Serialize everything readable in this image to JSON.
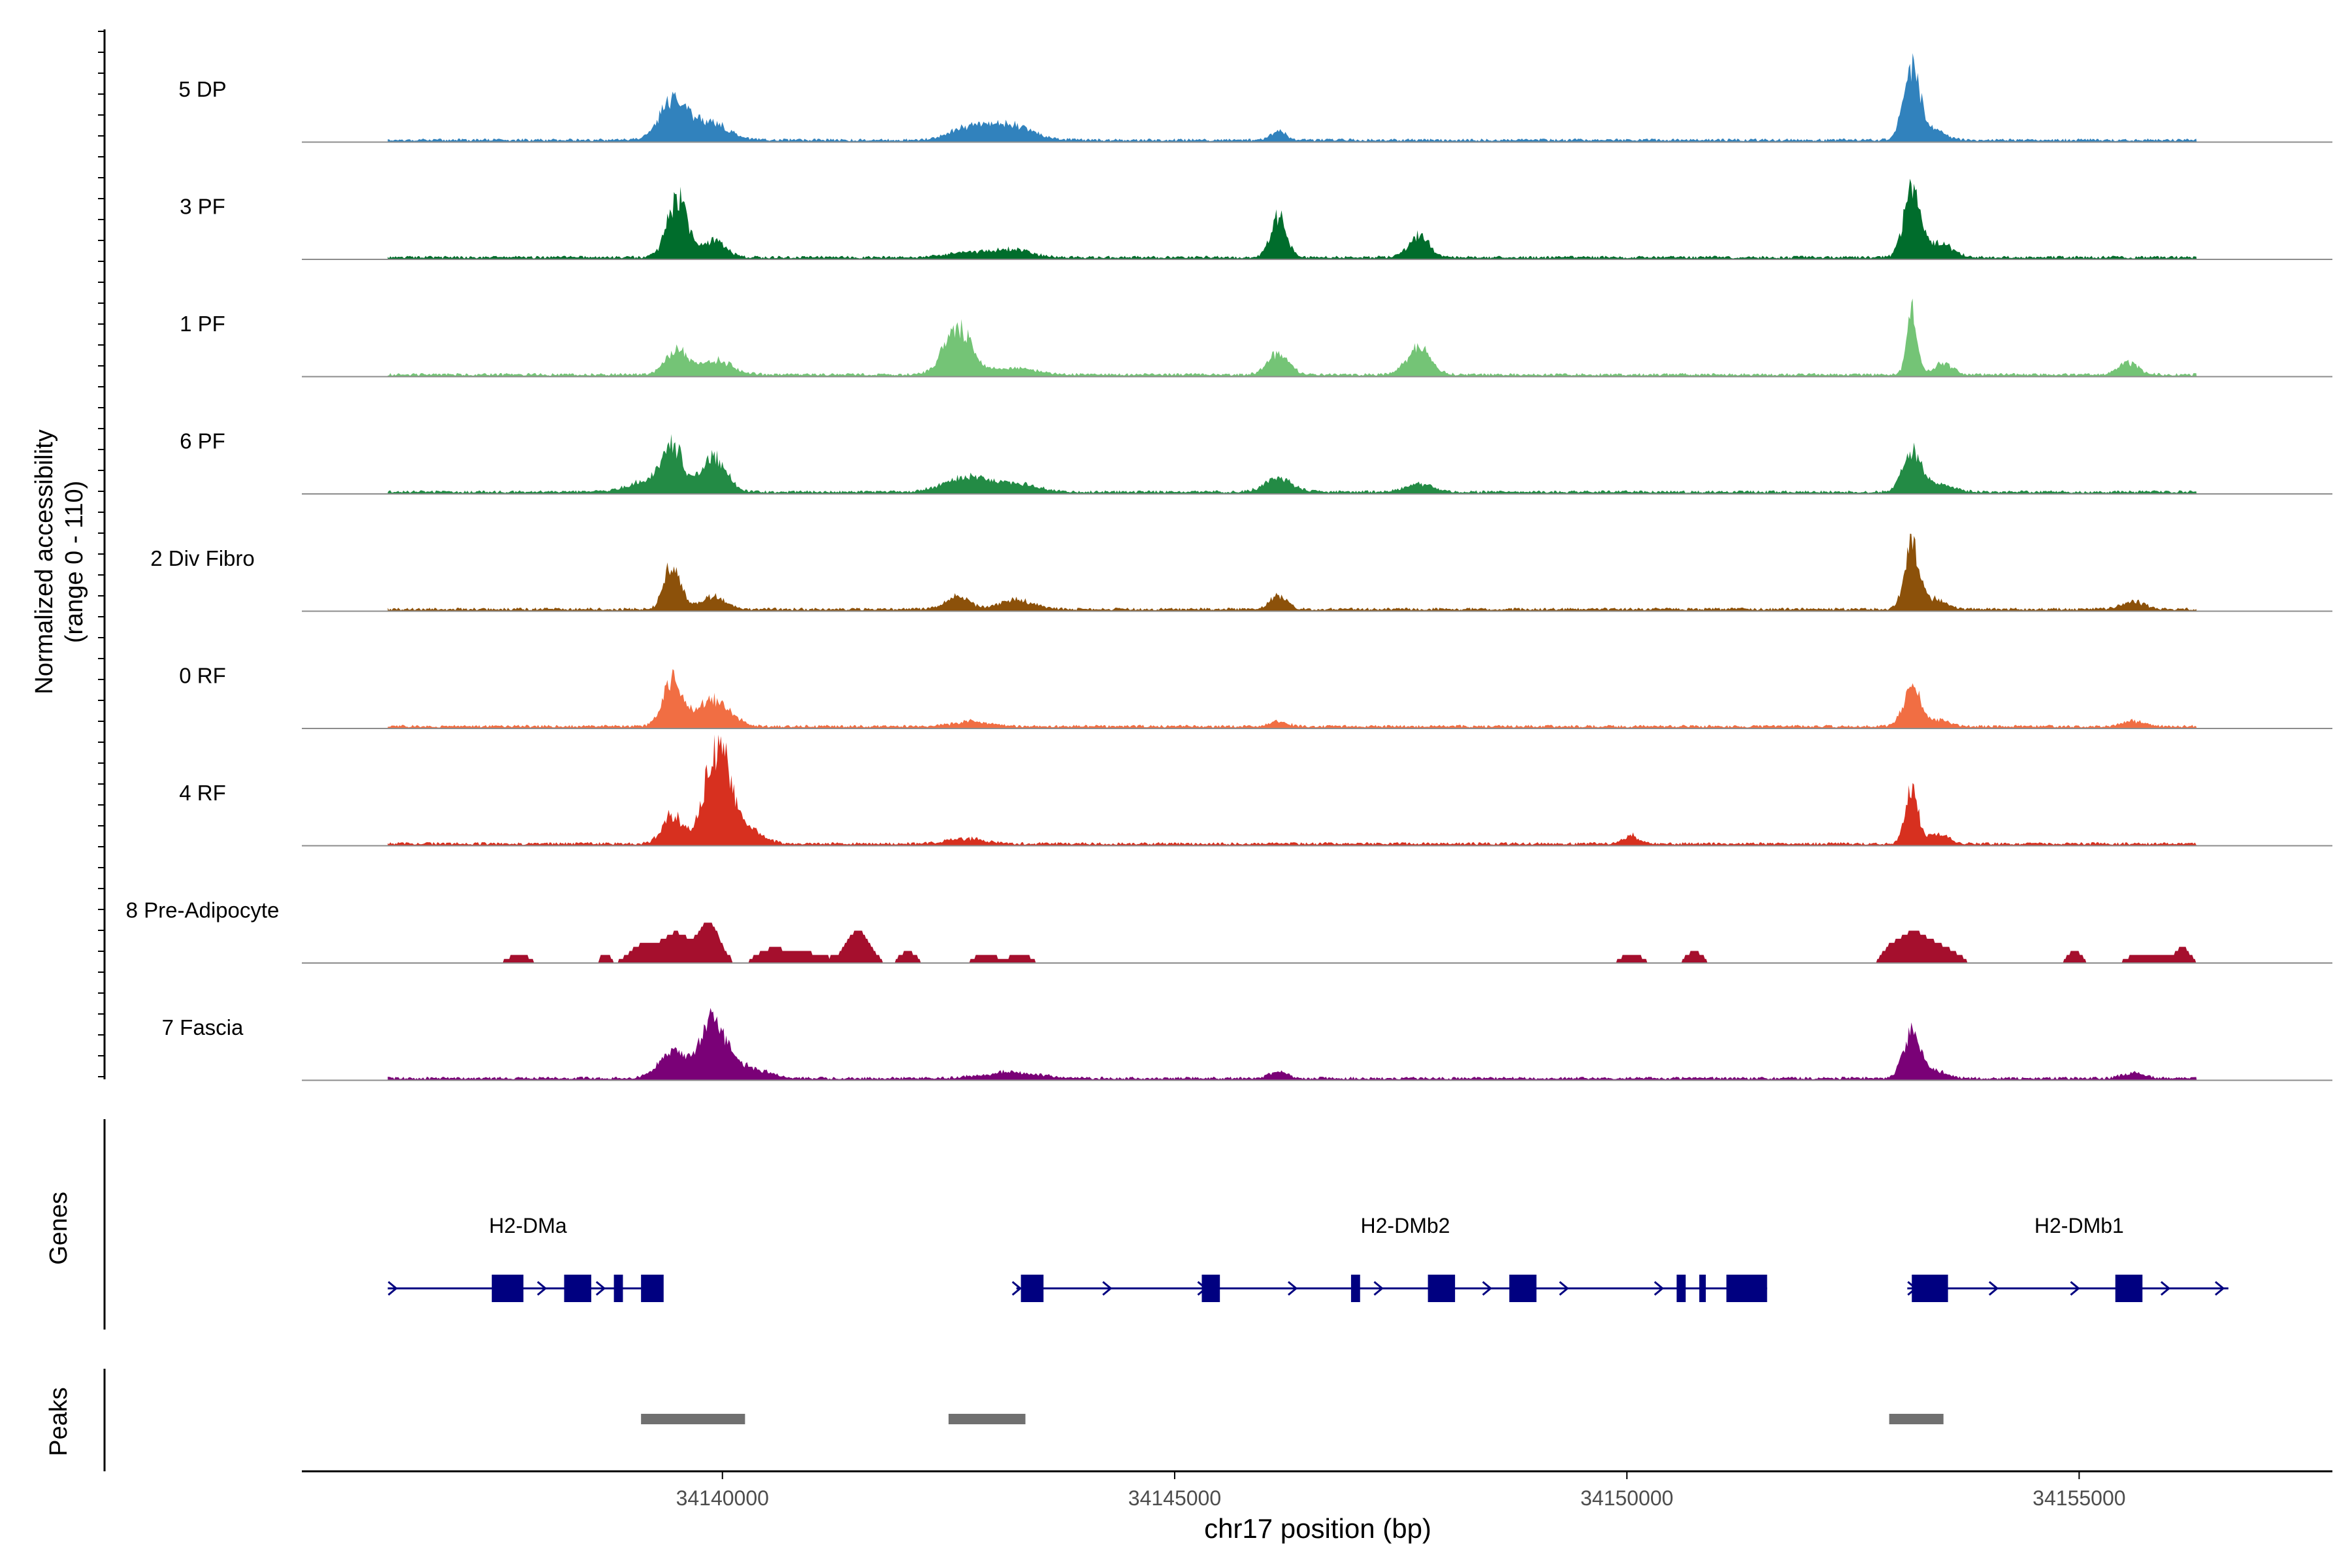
{
  "chart_data": {
    "type": "area",
    "title": "",
    "xlabel": "chr17 position (bp)",
    "ylabel_line1": "Normalized accessibility",
    "ylabel_line2": "(range 0 - 110)",
    "yrange": [
      0,
      110
    ],
    "xlim": [
      34135350,
      34157800
    ],
    "xticks": [
      34140000,
      34145000,
      34150000,
      34155000
    ],
    "xtick_labels": [
      "34140000",
      "34145000",
      "34150000",
      "34155000"
    ],
    "track_region": [
      34136300,
      34156300
    ],
    "tracks": [
      {
        "name": "5 DP",
        "color": "#3182bd",
        "baseline": 3,
        "peaks": [
          [
            34139450,
            38,
            150
          ],
          [
            34139850,
            18,
            200
          ],
          [
            34142700,
            10,
            200
          ],
          [
            34143150,
            16,
            250
          ],
          [
            34146150,
            9,
            80
          ],
          [
            34153150,
            72,
            90
          ],
          [
            34153400,
            10,
            120
          ]
        ]
      },
      {
        "name": "3 PF",
        "color": "#006d2c",
        "baseline": 3,
        "peaks": [
          [
            34139500,
            58,
            110
          ],
          [
            34139900,
            16,
            130
          ],
          [
            34142700,
            5,
            200
          ],
          [
            34143200,
            8,
            200
          ],
          [
            34146150,
            40,
            90
          ],
          [
            34147700,
            22,
            110
          ],
          [
            34153150,
            65,
            90
          ],
          [
            34153450,
            14,
            140
          ]
        ]
      },
      {
        "name": "1 PF",
        "color": "#74c476",
        "baseline": 3,
        "peaks": [
          [
            34139500,
            24,
            130
          ],
          [
            34139950,
            14,
            170
          ],
          [
            34142600,
            46,
            150
          ],
          [
            34143200,
            6,
            250
          ],
          [
            34146150,
            22,
            110
          ],
          [
            34147700,
            26,
            130
          ],
          [
            34153150,
            70,
            55
          ],
          [
            34153500,
            12,
            100
          ],
          [
            34155550,
            12,
            110
          ]
        ]
      },
      {
        "name": "6 PF",
        "color": "#238b45",
        "baseline": 3,
        "peaks": [
          [
            34139150,
            10,
            200
          ],
          [
            34139450,
            42,
            120
          ],
          [
            34139900,
            34,
            140
          ],
          [
            34142700,
            14,
            250
          ],
          [
            34143250,
            7,
            250
          ],
          [
            34146150,
            14,
            150
          ],
          [
            34147700,
            8,
            150
          ],
          [
            34153150,
            40,
            100
          ],
          [
            34153450,
            8,
            150
          ]
        ]
      },
      {
        "name": "2 Div Fibro",
        "color": "#8c510a",
        "baseline": 3,
        "peaks": [
          [
            34139450,
            46,
            90
          ],
          [
            34139900,
            12,
            140
          ],
          [
            34142600,
            12,
            130
          ],
          [
            34143250,
            9,
            180
          ],
          [
            34146150,
            14,
            90
          ],
          [
            34153150,
            62,
            80
          ],
          [
            34153400,
            10,
            120
          ],
          [
            34155600,
            8,
            120
          ]
        ]
      },
      {
        "name": "0 RF",
        "color": "#f16e43",
        "baseline": 3,
        "peaks": [
          [
            34139450,
            45,
            110
          ],
          [
            34139900,
            26,
            180
          ],
          [
            34142750,
            5,
            200
          ],
          [
            34146150,
            5,
            100
          ],
          [
            34153150,
            42,
            90
          ],
          [
            34153450,
            6,
            120
          ],
          [
            34155600,
            5,
            120
          ]
        ]
      },
      {
        "name": "4 RF",
        "color": "#d7301f",
        "baseline": 3,
        "peaks": [
          [
            34139450,
            28,
            110
          ],
          [
            34139950,
            95,
            140
          ],
          [
            34140300,
            14,
            150
          ],
          [
            34142700,
            5,
            200
          ],
          [
            34150050,
            8,
            80
          ],
          [
            34153150,
            52,
            70
          ],
          [
            34153450,
            10,
            110
          ]
        ]
      },
      {
        "name": "8 Pre-Adipocyte",
        "color": "#a50f2d",
        "baseline": 0,
        "peaks": [
          [
            34137750,
            8,
            140
          ],
          [
            34138700,
            8,
            60
          ],
          [
            34139150,
            20,
            160
          ],
          [
            34139500,
            28,
            130
          ],
          [
            34139850,
            40,
            120
          ],
          [
            34140550,
            14,
            160
          ],
          [
            34140950,
            10,
            180
          ],
          [
            34141500,
            32,
            130
          ],
          [
            34142050,
            12,
            90
          ],
          [
            34142900,
            8,
            140
          ],
          [
            34143300,
            8,
            130
          ],
          [
            34150050,
            8,
            140
          ],
          [
            34150750,
            12,
            90
          ],
          [
            34152900,
            8,
            80
          ],
          [
            34153150,
            30,
            170
          ],
          [
            34153500,
            14,
            160
          ],
          [
            34154950,
            12,
            80
          ],
          [
            34155750,
            10,
            200
          ],
          [
            34156150,
            14,
            80
          ]
        ]
      },
      {
        "name": "7 Fascia",
        "color": "#7a0177",
        "baseline": 3,
        "peaks": [
          [
            34139450,
            25,
            150
          ],
          [
            34139900,
            55,
            150
          ],
          [
            34140300,
            10,
            200
          ],
          [
            34143200,
            6,
            300
          ],
          [
            34146150,
            6,
            100
          ],
          [
            34153150,
            46,
            90
          ],
          [
            34153400,
            8,
            130
          ],
          [
            34155600,
            6,
            120
          ]
        ]
      }
    ],
    "genes_panel_label": "Genes",
    "gene_color": "#000080",
    "genes": [
      {
        "name": "H2-DMa",
        "label_pos": 34137850,
        "start": 34136300,
        "end": 34139150,
        "exons": [
          [
            34137450,
            34137800
          ],
          [
            34138250,
            34138550
          ],
          [
            34138800,
            34138900
          ],
          [
            34139100,
            34139350
          ]
        ],
        "arrows": [
          34136350,
          34138000,
          34138650
        ]
      },
      {
        "name": "H2-DMb2",
        "label_pos": 34147550,
        "start": 34143250,
        "end": 34151550,
        "exons": [
          [
            34143300,
            34143550
          ],
          [
            34145300,
            34145500
          ],
          [
            34146950,
            34147050
          ],
          [
            34147800,
            34148100
          ],
          [
            34148700,
            34149000
          ],
          [
            34150550,
            34150650
          ],
          [
            34150800,
            34150850
          ],
          [
            34151100,
            34151550
          ]
        ],
        "arrows": [
          34143250,
          34144250,
          34145300,
          34146300,
          34147250,
          34148450,
          34149300,
          34150350
        ]
      },
      {
        "name": "H2-DMb1",
        "label_pos": 34155000,
        "start": 34153100,
        "end": 34156650,
        "exons": [
          [
            34153150,
            34153550
          ],
          [
            34155400,
            34155700
          ]
        ],
        "arrows": [
          34153150,
          34154050,
          34154950,
          34155950,
          34156550
        ]
      }
    ],
    "peaks_panel_label": "Peaks",
    "peak_color": "#707070",
    "peak_regions": [
      [
        34139100,
        34140250
      ],
      [
        34142500,
        34143350
      ],
      [
        34152900,
        34153500
      ]
    ]
  }
}
